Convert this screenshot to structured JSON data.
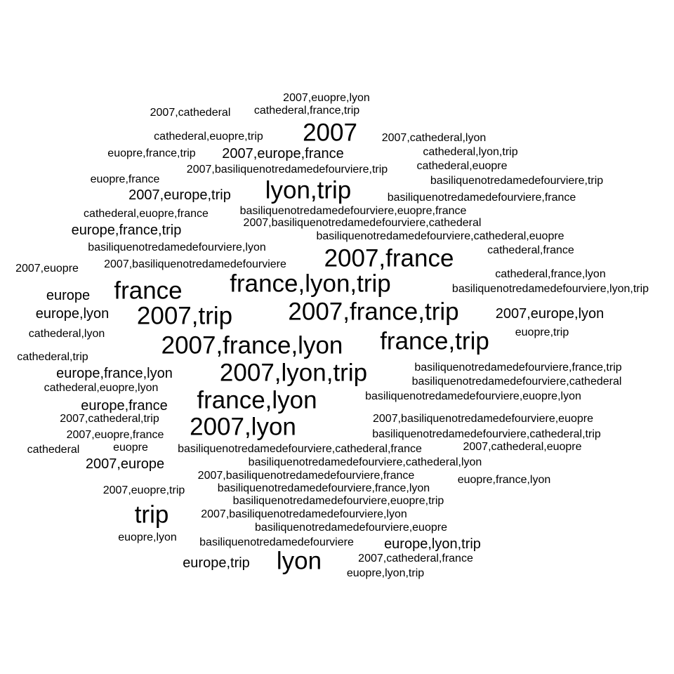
{
  "cloud": {
    "text_color": "#000000",
    "background": "#ffffff",
    "words": [
      {
        "text": "2007,euopre,lyon",
        "weight": 1
      },
      {
        "text": "2007,cathederal",
        "weight": 1
      },
      {
        "text": "cathederal,france,trip",
        "weight": 1
      },
      {
        "text": "2007",
        "weight": 4
      },
      {
        "text": "cathederal,euopre,trip",
        "weight": 1
      },
      {
        "text": "2007,cathederal,lyon",
        "weight": 1
      },
      {
        "text": "euopre,france,trip",
        "weight": 1
      },
      {
        "text": "2007,europe,france",
        "weight": 2
      },
      {
        "text": "cathederal,lyon,trip",
        "weight": 1
      },
      {
        "text": "cathederal,euopre",
        "weight": 1
      },
      {
        "text": "2007,basiliquenotredamedefourviere,trip",
        "weight": 1
      },
      {
        "text": "euopre,france",
        "weight": 1
      },
      {
        "text": "basiliquenotredamedefourviere,trip",
        "weight": 1
      },
      {
        "text": "lyon,trip",
        "weight": 4
      },
      {
        "text": "2007,europe,trip",
        "weight": 2
      },
      {
        "text": "basiliquenotredamedefourviere,france",
        "weight": 1
      },
      {
        "text": "cathederal,euopre,france",
        "weight": 1
      },
      {
        "text": "basiliquenotredamedefourviere,euopre,france",
        "weight": 1
      },
      {
        "text": "2007,basiliquenotredamedefourviere,cathederal",
        "weight": 1
      },
      {
        "text": "europe,france,trip",
        "weight": 2
      },
      {
        "text": "basiliquenotredamedefourviere,cathederal,euopre",
        "weight": 1
      },
      {
        "text": "basiliquenotredamedefourviere,lyon",
        "weight": 1
      },
      {
        "text": "cathederal,france",
        "weight": 1
      },
      {
        "text": "2007,france",
        "weight": 4
      },
      {
        "text": "2007,basiliquenotredamedefourviere",
        "weight": 1
      },
      {
        "text": "2007,euopre",
        "weight": 1
      },
      {
        "text": "cathederal,france,lyon",
        "weight": 1
      },
      {
        "text": "france,lyon,trip",
        "weight": 4
      },
      {
        "text": "basiliquenotredamedefourviere,lyon,trip",
        "weight": 1
      },
      {
        "text": "france",
        "weight": 4
      },
      {
        "text": "europe",
        "weight": 2
      },
      {
        "text": "2007,france,trip",
        "weight": 4
      },
      {
        "text": "europe,lyon",
        "weight": 2
      },
      {
        "text": "2007,trip",
        "weight": 4
      },
      {
        "text": "2007,europe,lyon",
        "weight": 2
      },
      {
        "text": "cathederal,lyon",
        "weight": 1
      },
      {
        "text": "euopre,trip",
        "weight": 1
      },
      {
        "text": "france,trip",
        "weight": 4
      },
      {
        "text": "2007,france,lyon",
        "weight": 4
      },
      {
        "text": "cathederal,trip",
        "weight": 1
      },
      {
        "text": "basiliquenotredamedefourviere,france,trip",
        "weight": 1
      },
      {
        "text": "europe,france,lyon",
        "weight": 2
      },
      {
        "text": "2007,lyon,trip",
        "weight": 4
      },
      {
        "text": "basiliquenotredamedefourviere,cathederal",
        "weight": 1
      },
      {
        "text": "cathederal,euopre,lyon",
        "weight": 1
      },
      {
        "text": "france,lyon",
        "weight": 4
      },
      {
        "text": "basiliquenotredamedefourviere,euopre,lyon",
        "weight": 1
      },
      {
        "text": "europe,france",
        "weight": 2
      },
      {
        "text": "2007,cathederal,trip",
        "weight": 1
      },
      {
        "text": "2007,basiliquenotredamedefourviere,euopre",
        "weight": 1
      },
      {
        "text": "2007,lyon",
        "weight": 4
      },
      {
        "text": "2007,euopre,france",
        "weight": 1
      },
      {
        "text": "basiliquenotredamedefourviere,cathederal,trip",
        "weight": 1
      },
      {
        "text": "cathederal",
        "weight": 1
      },
      {
        "text": "euopre",
        "weight": 1
      },
      {
        "text": "basiliquenotredamedefourviere,cathederal,france",
        "weight": 1
      },
      {
        "text": "2007,cathederal,euopre",
        "weight": 1
      },
      {
        "text": "2007,europe",
        "weight": 2
      },
      {
        "text": "basiliquenotredamedefourviere,cathederal,lyon",
        "weight": 1
      },
      {
        "text": "2007,basiliquenotredamedefourviere,france",
        "weight": 1
      },
      {
        "text": "euopre,france,lyon",
        "weight": 1
      },
      {
        "text": "2007,euopre,trip",
        "weight": 1
      },
      {
        "text": "basiliquenotredamedefourviere,france,lyon",
        "weight": 1
      },
      {
        "text": "basiliquenotredamedefourviere,euopre,trip",
        "weight": 1
      },
      {
        "text": "trip",
        "weight": 4
      },
      {
        "text": "2007,basiliquenotredamedefourviere,lyon",
        "weight": 1
      },
      {
        "text": "basiliquenotredamedefourviere,euopre",
        "weight": 1
      },
      {
        "text": "euopre,lyon",
        "weight": 1
      },
      {
        "text": "basiliquenotredamedefourviere",
        "weight": 1
      },
      {
        "text": "europe,lyon,trip",
        "weight": 2
      },
      {
        "text": "europe,trip",
        "weight": 2
      },
      {
        "text": "lyon",
        "weight": 4
      },
      {
        "text": "2007,cathederal,france",
        "weight": 1
      },
      {
        "text": "euopre,lyon,trip",
        "weight": 1
      }
    ]
  }
}
